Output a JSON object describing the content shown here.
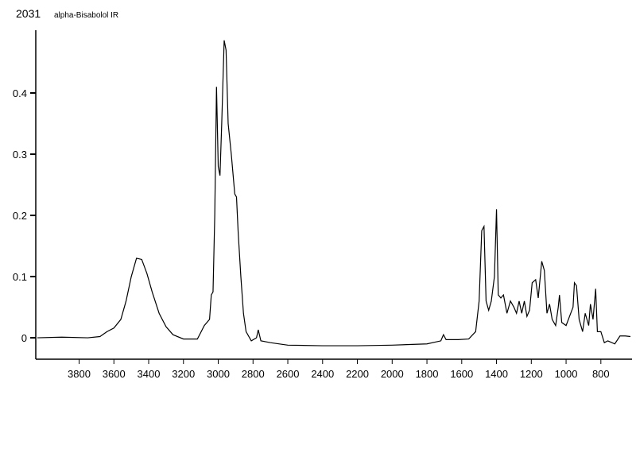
{
  "chart_data": {
    "type": "line",
    "id_label": "2031",
    "title": "alpha-Bisabolol IR",
    "x": [
      4040,
      3900,
      3750,
      3680,
      3640,
      3600,
      3560,
      3530,
      3500,
      3470,
      3440,
      3410,
      3380,
      3340,
      3300,
      3260,
      3200,
      3120,
      3080,
      3050,
      3040,
      3030,
      3020,
      3010,
      3000,
      2990,
      2980,
      2966,
      2955,
      2943,
      2925,
      2905,
      2895,
      2885,
      2870,
      2855,
      2840,
      2810,
      2780,
      2770,
      2755,
      2700,
      2600,
      2400,
      2200,
      2000,
      1800,
      1720,
      1705,
      1690,
      1620,
      1560,
      1520,
      1500,
      1485,
      1472,
      1460,
      1445,
      1430,
      1412,
      1400,
      1390,
      1375,
      1360,
      1340,
      1320,
      1300,
      1285,
      1270,
      1255,
      1240,
      1225,
      1210,
      1195,
      1175,
      1160,
      1140,
      1125,
      1110,
      1095,
      1080,
      1060,
      1045,
      1038,
      1025,
      1000,
      980,
      960,
      952,
      940,
      925,
      905,
      890,
      870,
      860,
      845,
      830,
      820,
      800,
      780,
      760,
      720,
      690,
      660,
      630
    ],
    "series": [
      {
        "color": "#000000",
        "values": [
          0,
          0.001,
          0,
          0.002,
          0.01,
          0.016,
          0.03,
          0.06,
          0.1,
          0.13,
          0.128,
          0.105,
          0.075,
          0.04,
          0.018,
          0.005,
          -0.002,
          -0.002,
          0.02,
          0.03,
          0.07,
          0.075,
          0.2,
          0.41,
          0.28,
          0.265,
          0.35,
          0.486,
          0.47,
          0.35,
          0.3,
          0.235,
          0.23,
          0.17,
          0.1,
          0.04,
          0.01,
          -0.005,
          0,
          0.013,
          -0.005,
          -0.008,
          -0.012,
          -0.013,
          -0.013,
          -0.012,
          -0.01,
          -0.005,
          0.005,
          -0.003,
          -0.003,
          -0.002,
          0.01,
          0.06,
          0.175,
          0.182,
          0.06,
          0.045,
          0.06,
          0.1,
          0.21,
          0.07,
          0.065,
          0.07,
          0.04,
          0.06,
          0.05,
          0.04,
          0.06,
          0.04,
          0.06,
          0.035,
          0.045,
          0.09,
          0.095,
          0.065,
          0.125,
          0.11,
          0.04,
          0.055,
          0.03,
          0.02,
          0.05,
          0.07,
          0.025,
          0.02,
          0.035,
          0.05,
          0.09,
          0.085,
          0.03,
          0.01,
          0.04,
          0.02,
          0.055,
          0.03,
          0.08,
          0.01,
          0.01,
          -0.008,
          -0.005,
          -0.01,
          0.003,
          0.003,
          0.002
        ]
      }
    ],
    "xlim": [
      4040,
      630
    ],
    "xticks": [
      3800,
      3600,
      3400,
      3200,
      3000,
      2800,
      2600,
      2400,
      2200,
      2000,
      1800,
      1600,
      1400,
      1200,
      1000,
      800
    ],
    "ylim": [
      -0.035,
      0.5
    ],
    "yticks": [
      0,
      0.1,
      0.2,
      0.3,
      0.4
    ]
  }
}
